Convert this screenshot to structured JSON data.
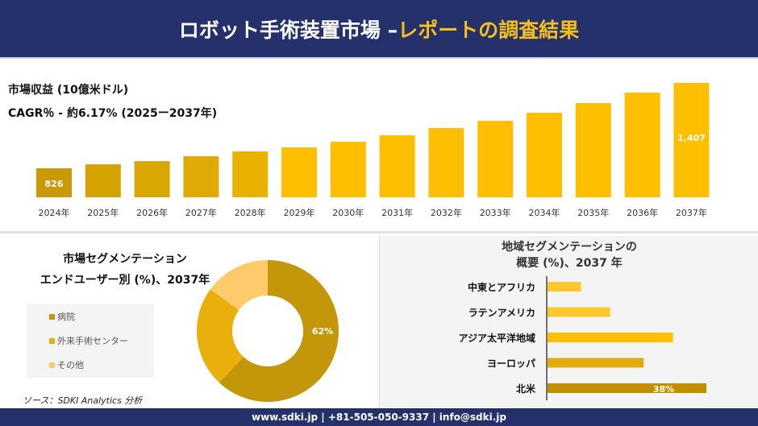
{
  "header": {
    "title_white": "ロボット手術装置市場 –",
    "title_yellow": "レポートの調査結果"
  },
  "revenue": {
    "label": "市場収益 (10億米ドル)",
    "cagr": "CAGR％ - 約6.17% (2025ー2037年)"
  },
  "chart_data": [
    {
      "type": "bar",
      "categories": [
        "2024年",
        "2025年",
        "2026年",
        "2027年",
        "2028年",
        "2029年",
        "2030年",
        "2031年",
        "2032年",
        "2033年",
        "2034年",
        "2035年",
        "2036年",
        "2037年"
      ],
      "values": [
        826,
        853,
        875,
        908,
        941,
        968,
        1007,
        1051,
        1100,
        1149,
        1204,
        1270,
        1341,
        1407
      ],
      "data_labels": {
        "0": "826",
        "13": "1,407"
      },
      "ylabel": "市場収益 (10億米ドル)"
    },
    {
      "type": "pie",
      "donut": true,
      "title": "市場セグメンテーション エンドユーザー別 (%)、2037年",
      "title_lines": [
        "市場セグメンテーション",
        "エンドユーザー別 (%)、2037年"
      ],
      "labels": [
        "病院",
        "外来手術センター",
        "その他"
      ],
      "values": [
        62,
        23,
        15
      ],
      "colors": [
        "#c4960a",
        "#e9b00c",
        "#fdca6c"
      ],
      "data_label": "62%"
    },
    {
      "type": "bar",
      "orientation": "horizontal",
      "title_lines": [
        "地域セグメンテーションの",
        "概要 (%)、2037 年"
      ],
      "categories": [
        "中東とアフリカ",
        "ラテンアメリカ",
        "アジア太平洋地域",
        "ヨーロッパ",
        "北米"
      ],
      "values": [
        8,
        15,
        30,
        23,
        38
      ],
      "colors": [
        "#fcc92c",
        "#fcc92c",
        "#fdbf00",
        "#e0ac0e",
        "#bf8f00"
      ],
      "data_label": "38%"
    }
  ],
  "source": "ソース：SDKI Analytics 分析",
  "footer": "www.sdki.jp | +81-505-050-9337 | info@sdki.jp"
}
